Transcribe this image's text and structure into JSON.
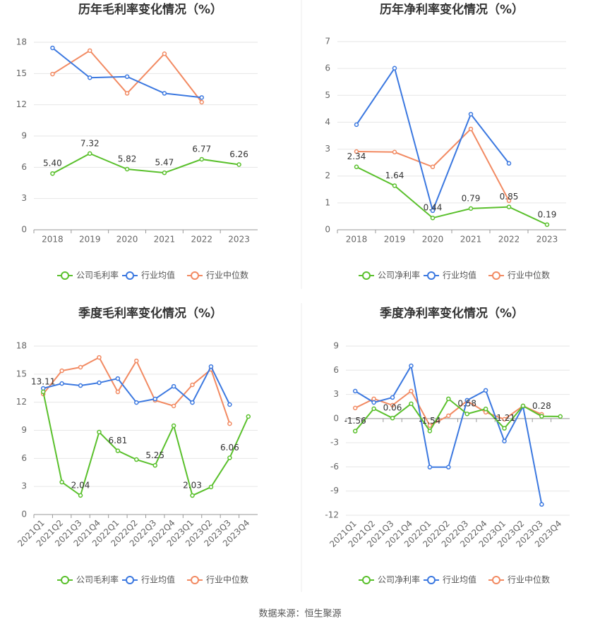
{
  "chart_data": [
    {
      "type": "line",
      "title": "历年毛利率变化情况（%）",
      "categories": [
        "2018",
        "2019",
        "2020",
        "2021",
        "2022",
        "2023"
      ],
      "series": [
        {
          "name": "公司毛利率",
          "color": "#5ac02c",
          "values": [
            5.4,
            7.32,
            5.82,
            5.47,
            6.77,
            6.26
          ],
          "value_labels": [
            "5.40",
            "7.32",
            "5.82",
            "5.47",
            "6.77",
            "6.26"
          ]
        },
        {
          "name": "行业均值",
          "color": "#3b78e0",
          "values": [
            17.46,
            14.6,
            14.7,
            13.1,
            12.7,
            null
          ]
        },
        {
          "name": "行业中位数",
          "color": "#f28a62",
          "values": [
            14.95,
            17.2,
            13.1,
            16.9,
            12.25,
            null
          ]
        }
      ],
      "ylim": [
        0,
        18
      ],
      "yticks": [
        0,
        3,
        6,
        9,
        12,
        15,
        18
      ],
      "grid": true,
      "legend": "bottom"
    },
    {
      "type": "line",
      "title": "历年净利率变化情况（%）",
      "categories": [
        "2018",
        "2019",
        "2020",
        "2021",
        "2022",
        "2023"
      ],
      "series": [
        {
          "name": "公司净利率",
          "color": "#5ac02c",
          "values": [
            2.34,
            1.64,
            0.44,
            0.79,
            0.85,
            0.19
          ]
        },
        {
          "name": "行业均值",
          "color": "#3b78e0",
          "values": [
            3.91,
            6.01,
            0.71,
            4.3,
            2.47,
            null
          ]
        },
        {
          "name": "行业中位数",
          "color": "#f28a62",
          "values": [
            2.91,
            2.89,
            2.34,
            3.75,
            1.08,
            null
          ]
        }
      ],
      "ylim": [
        0,
        7
      ],
      "yticks": [
        0,
        1,
        2,
        3,
        4,
        5,
        6,
        7
      ],
      "grid": true,
      "legend": "bottom"
    },
    {
      "type": "line",
      "title": "季度毛利率变化情况（%）",
      "categories": [
        "2021Q1",
        "2021Q2",
        "2021Q3",
        "2021Q4",
        "2022Q1",
        "2022Q2",
        "2022Q3",
        "2022Q4",
        "2023Q1",
        "2023Q2",
        "2023Q3",
        "2023Q4"
      ],
      "series": [
        {
          "name": "公司毛利率",
          "color": "#5ac02c",
          "values": [
            13.11,
            3.46,
            2.04,
            8.81,
            6.81,
            5.87,
            5.25,
            9.49,
            2.03,
            2.94,
            6.06,
            10.47
          ]
        },
        {
          "name": "行业均值",
          "color": "#3b78e0",
          "values": [
            13.48,
            14.0,
            13.78,
            14.08,
            14.53,
            11.97,
            12.35,
            13.7,
            11.97,
            15.81,
            11.75,
            null
          ]
        },
        {
          "name": "行业中位数",
          "color": "#f28a62",
          "values": [
            12.88,
            15.36,
            15.74,
            16.79,
            13.1,
            16.42,
            12.2,
            11.6,
            13.86,
            15.51,
            9.71,
            null
          ]
        }
      ],
      "labeled_points": [
        0,
        2,
        4,
        6,
        8,
        10
      ],
      "ylim": [
        0,
        18
      ],
      "yticks": [
        0,
        3,
        6,
        9,
        12,
        15,
        18
      ],
      "grid": true,
      "legend": "bottom"
    },
    {
      "type": "line",
      "title": "季度净利率变化情况（%）",
      "categories": [
        "2021Q1",
        "2021Q2",
        "2021Q3",
        "2021Q4",
        "2022Q1",
        "2022Q2",
        "2022Q3",
        "2022Q4",
        "2023Q1",
        "2023Q2",
        "2023Q3",
        "2023Q4"
      ],
      "series": [
        {
          "name": "公司净利率",
          "color": "#5ac02c",
          "values": [
            -1.56,
            1.22,
            0.06,
            1.84,
            -1.54,
            2.45,
            0.58,
            1.2,
            -1.21,
            1.57,
            0.28,
            0.26
          ]
        },
        {
          "name": "行业均值",
          "color": "#3b78e0",
          "values": [
            3.41,
            2.0,
            2.62,
            6.55,
            -6.03,
            -6.03,
            2.27,
            3.5,
            -2.8,
            1.49,
            -10.66,
            null
          ]
        },
        {
          "name": "行业中位数",
          "color": "#f28a62",
          "values": [
            1.31,
            2.45,
            1.66,
            3.41,
            -0.87,
            0.35,
            2.19,
            0.79,
            -0.09,
            1.57,
            0.52,
            null
          ]
        }
      ],
      "labeled_points": [
        0,
        2,
        4,
        6,
        8,
        10
      ],
      "ylim": [
        -12,
        9
      ],
      "yticks": [
        -12,
        -9,
        -6,
        -3,
        0,
        3,
        6,
        9
      ],
      "grid": true,
      "legend": "bottom"
    }
  ],
  "footer": {
    "source": "数据来源：恒生聚源"
  }
}
